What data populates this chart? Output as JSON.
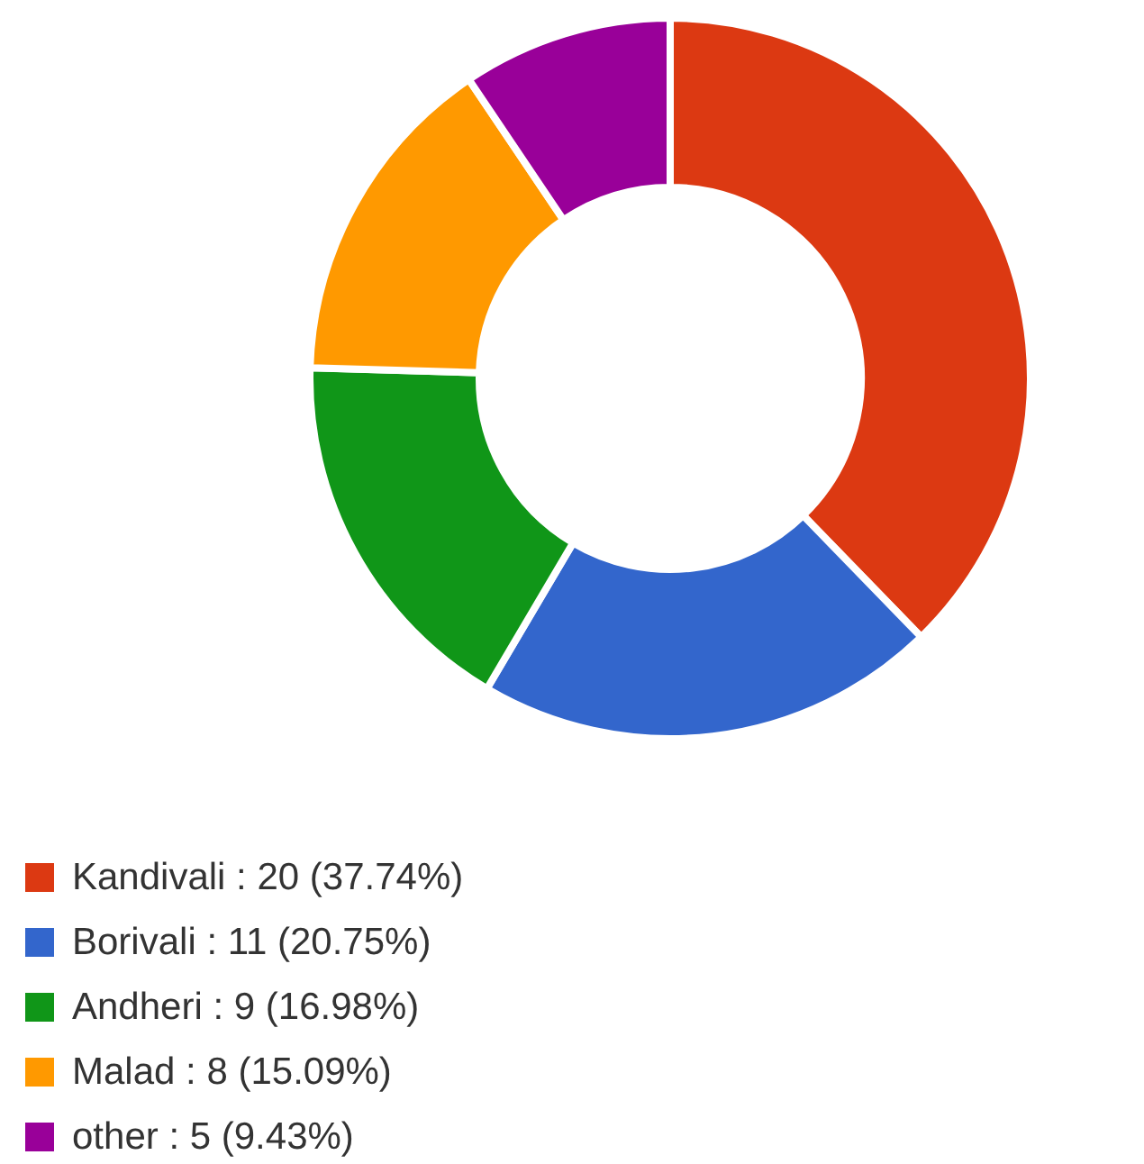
{
  "chart_data": {
    "type": "donut",
    "categories": [
      "Kandivali",
      "Borivali",
      "Andheri",
      "Malad",
      "other"
    ],
    "values": [
      20,
      11,
      9,
      8,
      5
    ],
    "colors": [
      "#dc3912",
      "#3366cc",
      "#109618",
      "#ff9900",
      "#990099"
    ],
    "value_labels": [
      "20 (37.74%)",
      "11 (20.75%)",
      "9 (16.98%)",
      "8 (15.09%)",
      "5 (9.43%)"
    ],
    "legend": "bottom left"
  }
}
